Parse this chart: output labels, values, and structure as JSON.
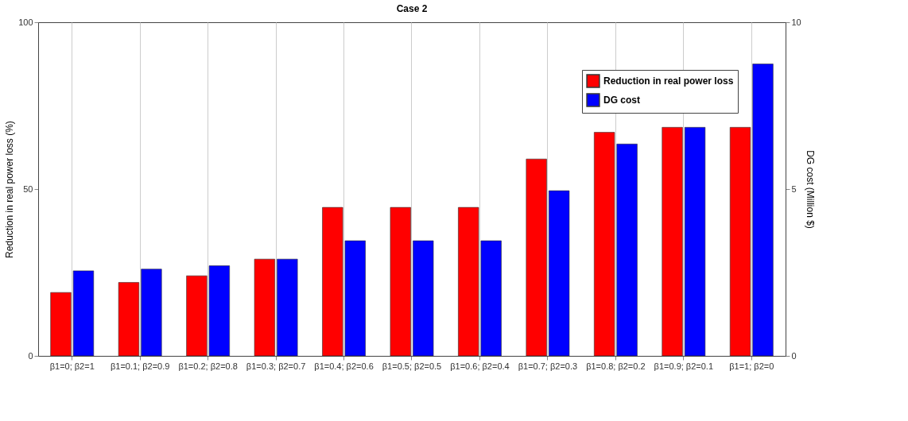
{
  "chart_data": {
    "type": "bar",
    "title": "Case 2",
    "ylabel": "Reduction in real power loss (%)",
    "y2label": "DG cost (Million $)",
    "categories": [
      "β1=0; β2=1",
      "β1=0.1; β2=0.9",
      "β1=0.2; β2=0.8",
      "β1=0.3; β2=0.7",
      "β1=0.4; β2=0.6",
      "β1=0.5; β2=0.5",
      "β1=0.6; β2=0.4",
      "β1=0.7; β2=0.3",
      "β1=0.8; β2=0.2",
      "β1=0.9; β2=0.1",
      "β1=1; β2=0"
    ],
    "series": [
      {
        "name": "Reduction in real power loss",
        "color": "#ff0000",
        "values": [
          19,
          22,
          24,
          29,
          44.5,
          44.5,
          44.5,
          59,
          67,
          68.5,
          68.5
        ]
      },
      {
        "name": "DG cost",
        "color": "#0000ff",
        "axis": "y2",
        "values": [
          2.55,
          2.6,
          2.7,
          2.9,
          3.45,
          3.45,
          3.45,
          4.95,
          6.35,
          6.85,
          8.75
        ]
      }
    ],
    "ylim": [
      0,
      100
    ],
    "yticks": [
      0,
      50,
      100
    ],
    "y2lim": [
      0,
      10
    ],
    "y2ticks": [
      0,
      5,
      10
    ],
    "grid": "x",
    "legend": "top right"
  }
}
